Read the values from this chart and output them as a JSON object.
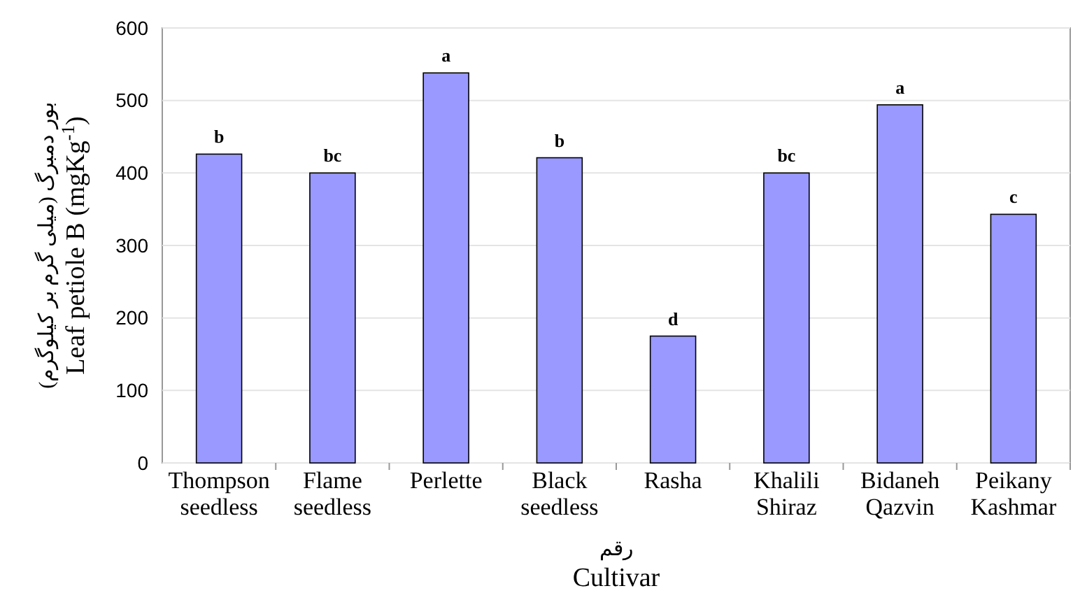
{
  "chart_data": {
    "type": "bar",
    "ylabel": "بور دمبرگ (میلی گرم بر کیلوگرم)\nLeaf petiole B (mgKg$^{-1}$)",
    "xlabel": "رقم\nCultivar",
    "categories": [
      "Thompson\nseedless",
      "Flame\nseedless",
      "Perlette",
      "Black\nseedless",
      "Rasha",
      "Khalili\nShiraz",
      "Bidaneh\nQazvin",
      "Peikany\nKashmar"
    ],
    "values": [
      426,
      400,
      538,
      421,
      175,
      400,
      494,
      343
    ],
    "color": "#9999ff",
    "ylim": [
      0,
      600
    ],
    "yticks": [
      0,
      100,
      200,
      300,
      400,
      500,
      600
    ],
    "grid": "y",
    "annotations": [
      {
        "text": "b",
        "x": "Thompson\nseedless",
        "y": 426
      },
      {
        "text": "bc",
        "x": "Flame\nseedless",
        "y": 400
      },
      {
        "text": "a",
        "x": "Perlette",
        "y": 538
      },
      {
        "text": "b",
        "x": "Black\nseedless",
        "y": 421
      },
      {
        "text": "d",
        "x": "Rasha",
        "y": 175
      },
      {
        "text": "bc",
        "x": "Khalili\nShiraz",
        "y": 400
      },
      {
        "text": "a",
        "x": "Bidaneh\nQazvin",
        "y": 494
      },
      {
        "text": "c",
        "x": "Peikany\nKashmar",
        "y": 343
      }
    ]
  }
}
